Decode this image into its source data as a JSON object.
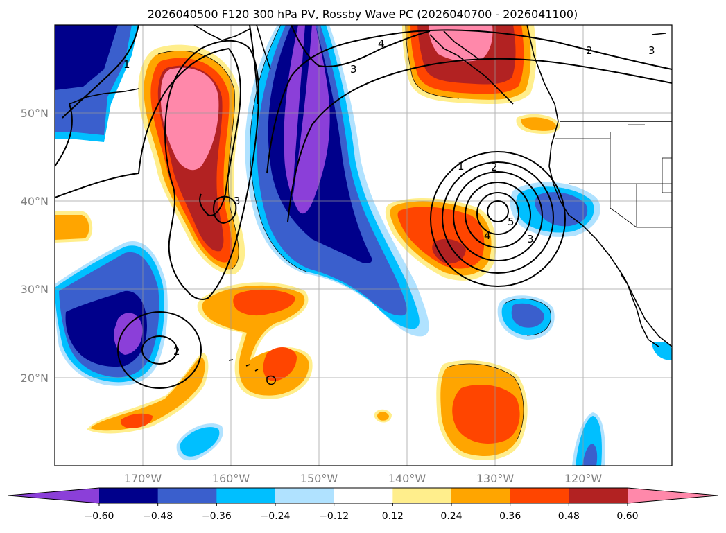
{
  "title": "2026040500 F120 300 hPa PV, Rossby Wave PC (2026040700 - 2026041100)",
  "lat_labels": [
    "50°N",
    "40°N",
    "30°N",
    "20°N"
  ],
  "lon_labels": [
    "170°W",
    "160°W",
    "150°W",
    "140°W",
    "130°W",
    "120°W"
  ],
  "contour_labels": [
    "1",
    "1",
    "2",
    "2",
    "2",
    "3",
    "3",
    "3",
    "3",
    "4",
    "4",
    "5"
  ],
  "colorbar": {
    "ticks": [
      "−0.60",
      "−0.48",
      "−0.36",
      "−0.24",
      "−0.12",
      "0.12",
      "0.24",
      "0.36",
      "0.48",
      "0.60"
    ],
    "colors": [
      "#8b3fd9",
      "#00008b",
      "#3a5fcd",
      "#00bfff",
      "#b0e2ff",
      "#ffffff",
      "#ffee8c",
      "#ffa500",
      "#ff4500",
      "#b22222",
      "#ff88aa"
    ]
  }
}
